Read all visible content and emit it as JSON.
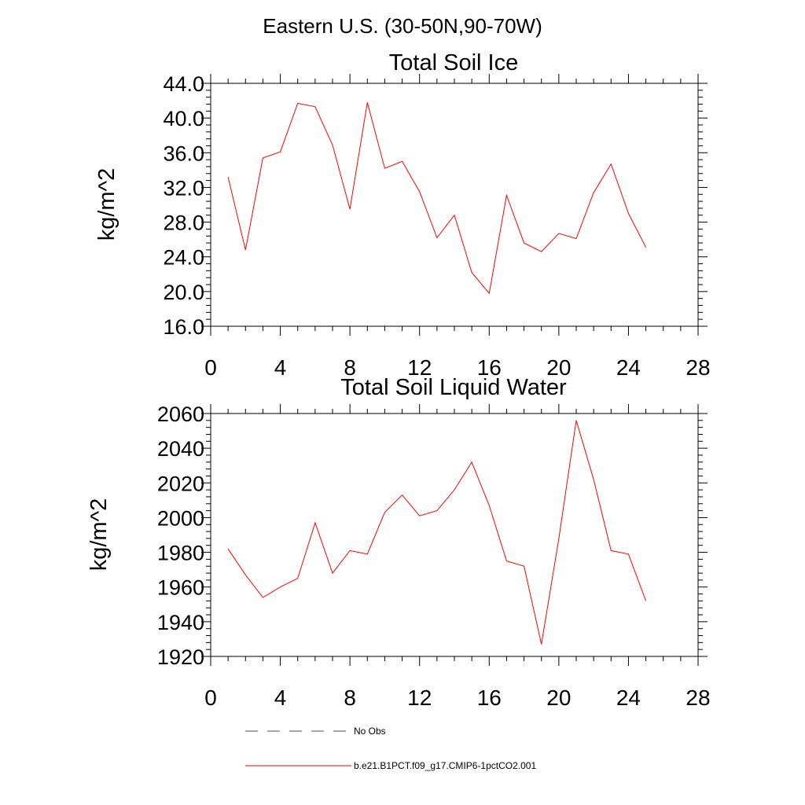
{
  "suptitle": "Eastern U.S. (30-50N,90-70W)",
  "chart_data": [
    {
      "type": "line",
      "title": "Total Soil Ice",
      "xlabel": "",
      "ylabel": "kg/m^2",
      "xlim": [
        0,
        28
      ],
      "ylim": [
        16,
        44
      ],
      "xticks": [
        0,
        4,
        8,
        12,
        16,
        20,
        24,
        28
      ],
      "yticks": [
        16,
        20,
        24,
        28,
        32,
        36,
        40,
        44
      ],
      "ytick_labels": [
        "16.0",
        "20.0",
        "24.0",
        "28.0",
        "32.0",
        "36.0",
        "40.0",
        "44.0"
      ],
      "grid": false,
      "series": [
        {
          "name": "b.e21.B1PCT.f09_g17.CMIP6-1pctCO2.001",
          "color": "#ff0000",
          "x": [
            1,
            2,
            3,
            4,
            5,
            6,
            7,
            8,
            9,
            10,
            11,
            12,
            13,
            14,
            15,
            16,
            17,
            18,
            19,
            20,
            21,
            22,
            23,
            24,
            25
          ],
          "y": [
            33.2,
            24.8,
            35.4,
            36.1,
            41.7,
            41.3,
            36.9,
            29.5,
            41.8,
            34.2,
            35.0,
            31.5,
            26.2,
            28.8,
            22.2,
            19.8,
            31.1,
            25.6,
            24.6,
            26.7,
            26.1,
            31.4,
            34.7,
            29.0,
            25.1
          ]
        }
      ]
    },
    {
      "type": "line",
      "title": "Total Soil Liquid Water",
      "xlabel": "",
      "ylabel": "kg/m^2",
      "xlim": [
        0,
        28
      ],
      "ylim": [
        1920,
        2060
      ],
      "xticks": [
        0,
        4,
        8,
        12,
        16,
        20,
        24,
        28
      ],
      "yticks": [
        1920,
        1940,
        1960,
        1980,
        2000,
        2020,
        2040,
        2060
      ],
      "ytick_labels": [
        "1920",
        "1940",
        "1960",
        "1980",
        "2000",
        "2020",
        "2040",
        "2060"
      ],
      "grid": false,
      "series": [
        {
          "name": "b.e21.B1PCT.f09_g17.CMIP6-1pctCO2.001",
          "color": "#ff0000",
          "x": [
            1,
            2,
            3,
            4,
            5,
            6,
            7,
            8,
            9,
            10,
            11,
            12,
            13,
            14,
            15,
            16,
            17,
            18,
            19,
            20,
            21,
            22,
            23,
            24,
            25
          ],
          "y": [
            1982,
            1967,
            1954,
            1960,
            1965,
            1997,
            1968,
            1981,
            1979,
            2003,
            2013,
            2001,
            2004,
            2016,
            2032,
            2007,
            1975,
            1972,
            1927,
            1988,
            2056,
            2022,
            1981,
            1979,
            1952
          ]
        }
      ]
    }
  ],
  "legend": {
    "placement": "bottom",
    "items": [
      {
        "label": "No Obs",
        "color": "#4a4a6a",
        "style": "dashed"
      },
      {
        "label": "b.e21.B1PCT.f09_g17.CMIP6-1pctCO2.001",
        "color": "#ff0000",
        "style": "solid"
      }
    ]
  }
}
